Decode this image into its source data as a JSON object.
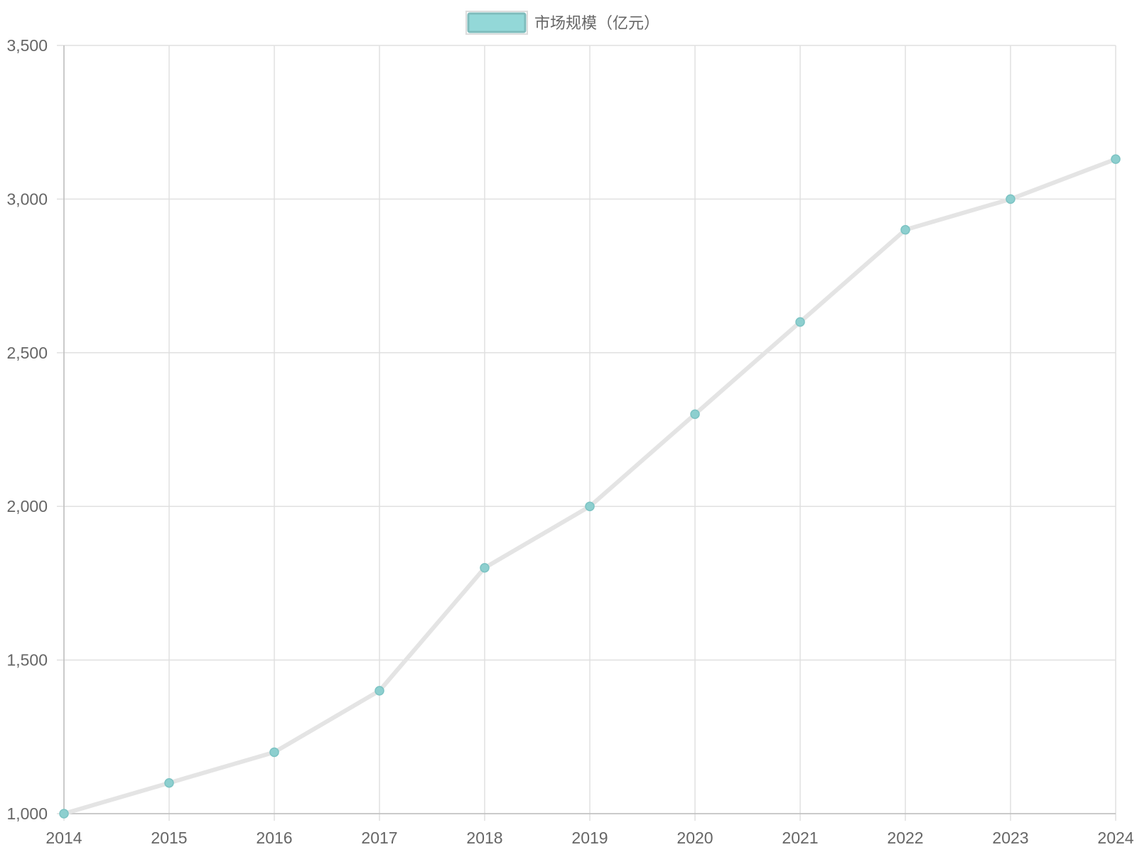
{
  "chart_data": {
    "type": "line",
    "categories": [
      "2014",
      "2015",
      "2016",
      "2017",
      "2018",
      "2019",
      "2020",
      "2021",
      "2022",
      "2023",
      "2024"
    ],
    "series": [
      {
        "name": "市场规模（亿元）",
        "values": [
          1000,
          1100,
          1200,
          1400,
          1800,
          2000,
          2300,
          2600,
          2900,
          3000,
          3130
        ]
      }
    ],
    "ylim": [
      1000,
      3500
    ],
    "y_ticks": [
      "1,000",
      "1,500",
      "2,000",
      "2,500",
      "3,000",
      "3,500"
    ],
    "grid": true,
    "legend_position": "top-center",
    "colors": {
      "line": "#e4e4e4",
      "point_fill": "#8dcfcf",
      "point_stroke": "#7cc3c3",
      "legend_fill": "#93d8d8",
      "legend_stroke": "#7fbcbc",
      "grid": "#e0e0e0",
      "axis": "#bdbdbd",
      "text": "#666666"
    }
  }
}
